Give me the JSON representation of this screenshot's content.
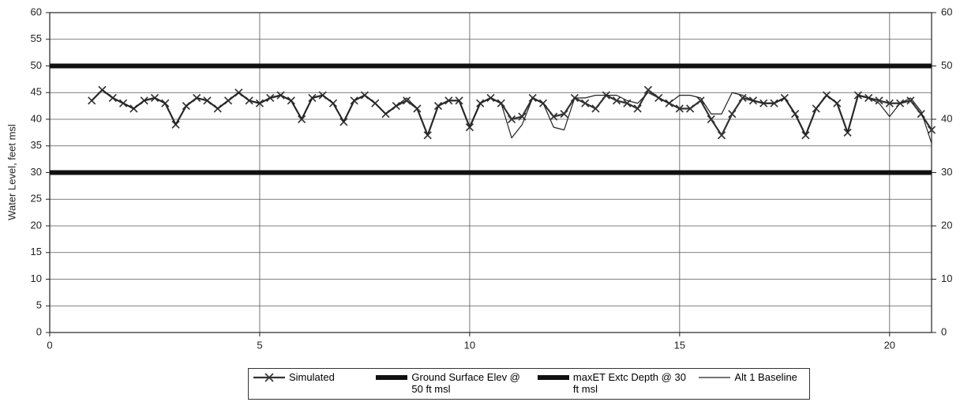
{
  "chart_data": {
    "type": "line",
    "y_label": "Water Level, feet msl",
    "xlim": [
      0,
      21
    ],
    "xticks": [
      0,
      5,
      10,
      15,
      20
    ],
    "ylim": [
      0,
      60
    ],
    "yticks": [
      0,
      5,
      10,
      15,
      20,
      25,
      30,
      35,
      40,
      45,
      50,
      55,
      60
    ],
    "y2lim": [
      0,
      60
    ],
    "y2ticks": [
      0,
      10,
      20,
      30,
      40,
      50,
      60
    ],
    "grid": true,
    "legend": "bottom",
    "series": [
      {
        "name": "Simulated",
        "color": "#333333",
        "marker": "x",
        "x": [
          1,
          1.25,
          1.5,
          1.75,
          2,
          2.25,
          2.5,
          2.75,
          3,
          3.25,
          3.5,
          3.75,
          4,
          4.25,
          4.5,
          4.75,
          5,
          5.25,
          5.5,
          5.75,
          6,
          6.25,
          6.5,
          6.75,
          7,
          7.25,
          7.5,
          7.75,
          8,
          8.25,
          8.5,
          8.75,
          9,
          9.25,
          9.5,
          9.75,
          10,
          10.25,
          10.5,
          10.75,
          11,
          11.25,
          11.5,
          11.75,
          12,
          12.25,
          12.5,
          12.75,
          13,
          13.25,
          13.5,
          13.75,
          14,
          14.25,
          14.5,
          14.75,
          15,
          15.25,
          15.5,
          15.75,
          16,
          16.25,
          16.5,
          16.75,
          17,
          17.25,
          17.5,
          17.75,
          18,
          18.25,
          18.5,
          18.75,
          19,
          19.25,
          19.5,
          19.75,
          20,
          20.25,
          20.5,
          20.75,
          21
        ],
        "values": [
          43.5,
          45.5,
          44,
          43,
          42,
          43.5,
          44,
          43,
          39,
          42.5,
          44,
          43.5,
          42,
          43.5,
          45,
          43.5,
          43,
          44,
          44.5,
          43.5,
          40,
          44,
          44.5,
          43,
          39.5,
          43.5,
          44.5,
          43,
          41,
          42.5,
          43.5,
          42,
          37,
          42.5,
          43.5,
          43.5,
          38.5,
          43,
          44,
          43,
          40,
          40.5,
          44,
          43,
          40.5,
          41,
          44,
          43,
          42,
          44.5,
          43.5,
          43,
          42,
          45.5,
          44,
          43,
          42,
          42,
          43.5,
          40,
          37,
          41,
          44,
          43.5,
          43,
          43,
          44,
          41,
          37,
          42,
          44.5,
          43,
          37.5,
          44.5,
          44,
          43.5,
          43,
          43,
          43.5,
          41,
          38
        ]
      },
      {
        "name": "Ground Surface Elev @ 50 ft msl",
        "color": "#111111",
        "width": 6,
        "x": [
          0,
          21
        ],
        "values": [
          50,
          50
        ]
      },
      {
        "name": "maxET Extc Depth @ 30 ft msl",
        "color": "#111111",
        "width": 6,
        "x": [
          0,
          21
        ],
        "values": [
          30,
          30
        ]
      },
      {
        "name": "Alt 1 Baseline",
        "color": "#222222",
        "width": 1.2,
        "x": [
          1,
          1.25,
          1.5,
          1.75,
          2,
          2.25,
          2.5,
          2.75,
          3,
          3.25,
          3.5,
          3.75,
          4,
          4.25,
          4.5,
          4.75,
          5,
          5.25,
          5.5,
          5.75,
          6,
          6.25,
          6.5,
          6.75,
          7,
          7.25,
          7.5,
          7.75,
          8,
          8.25,
          8.5,
          8.75,
          9,
          9.25,
          9.5,
          9.75,
          10,
          10.25,
          10.5,
          10.75,
          11,
          11.25,
          11.5,
          11.75,
          12,
          12.25,
          12.5,
          12.75,
          13,
          13.25,
          13.5,
          13.75,
          14,
          14.25,
          14.5,
          14.75,
          15,
          15.25,
          15.5,
          15.75,
          16,
          16.25,
          16.5,
          16.75,
          17,
          17.25,
          17.5,
          17.75,
          18,
          18.25,
          18.5,
          18.75,
          19,
          19.25,
          19.5,
          19.75,
          20,
          20.25,
          20.5,
          20.75,
          21
        ],
        "values": [
          43.5,
          45.5,
          44,
          43,
          42,
          43.5,
          44,
          43,
          39,
          42.5,
          44,
          43.5,
          42,
          43.5,
          45,
          43.5,
          43,
          44,
          44.5,
          43.5,
          40,
          44,
          44.5,
          43,
          39.5,
          43.5,
          44.5,
          43,
          41,
          42.5,
          44,
          42,
          37,
          42.5,
          43.5,
          43.5,
          38.5,
          43,
          44,
          43,
          36.5,
          39,
          44,
          43,
          38.5,
          38,
          44,
          44,
          44.5,
          44.5,
          44.5,
          43.5,
          43,
          45,
          44,
          43,
          44.5,
          44.5,
          44,
          41,
          41,
          45,
          44.5,
          43.5,
          43,
          43,
          44,
          41,
          37,
          42,
          44.5,
          43,
          37.5,
          44.5,
          44,
          43,
          40.5,
          43,
          44,
          41.5,
          35.5
        ]
      }
    ]
  }
}
